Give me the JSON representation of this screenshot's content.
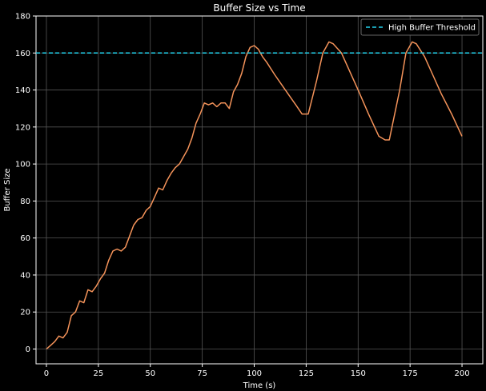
{
  "chart_data": {
    "type": "line",
    "title": "Buffer Size vs Time",
    "xlabel": "Time (s)",
    "ylabel": "Buffer Size",
    "xlim": [
      -5,
      210
    ],
    "ylim": [
      -8,
      180
    ],
    "xticks": [
      0,
      25,
      50,
      75,
      100,
      125,
      150,
      175,
      200
    ],
    "yticks": [
      0,
      20,
      40,
      60,
      80,
      100,
      120,
      140,
      160,
      180
    ],
    "grid": true,
    "legend_position": "top-right",
    "series": [
      {
        "name": "",
        "color": "#f4935a",
        "style": "solid",
        "x": [
          0,
          2,
          4,
          6,
          8,
          10,
          12,
          14,
          16,
          18,
          20,
          22,
          24,
          26,
          28,
          30,
          32,
          34,
          36,
          38,
          40,
          42,
          44,
          46,
          48,
          50,
          52,
          54,
          56,
          58,
          60,
          62,
          64,
          66,
          68,
          70,
          72,
          74,
          76,
          78,
          80,
          82,
          84,
          86,
          88,
          90,
          92,
          94,
          96,
          98,
          100,
          102,
          104,
          106,
          110,
          115,
          120,
          123,
          126,
          130,
          133,
          136,
          138,
          142,
          146,
          150,
          155,
          160,
          163,
          165,
          170,
          173,
          176,
          178,
          182,
          186,
          190,
          195,
          200
        ],
        "y": [
          0,
          2,
          4,
          7,
          6,
          9,
          18,
          20,
          26,
          25,
          32,
          31,
          34,
          38,
          41,
          48,
          53,
          54,
          53,
          55,
          61,
          67,
          70,
          71,
          75,
          77,
          82,
          87,
          86,
          91,
          95,
          98,
          100,
          104,
          108,
          114,
          122,
          127,
          133,
          132,
          133,
          131,
          133,
          133,
          130,
          139,
          143,
          149,
          158,
          163,
          164,
          162,
          158,
          155,
          148,
          140,
          132,
          127,
          127,
          145,
          160,
          166,
          165,
          160,
          150,
          140,
          127,
          115,
          113,
          113,
          140,
          160,
          166,
          165,
          158,
          148,
          138,
          127,
          115
        ]
      },
      {
        "name": "High Buffer Threshold",
        "color": "#22d3ee",
        "style": "dashed",
        "x": [
          -5,
          210
        ],
        "y": [
          160,
          160
        ]
      }
    ]
  }
}
